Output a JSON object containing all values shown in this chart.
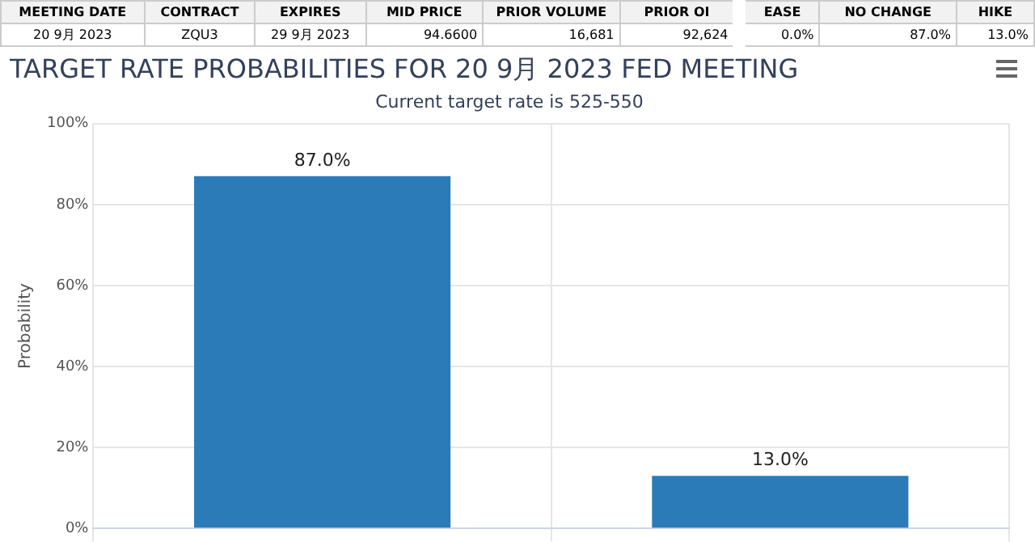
{
  "chart_data": {
    "type": "bar",
    "title": "TARGET RATE PROBABILITIES FOR 20 9月 2023 FED MEETING",
    "subtitle": "Current target rate is 525-550",
    "ylabel": "Probability",
    "annotations": [
      "MEETING DATE",
      "CONTRACT",
      "EXPIRES",
      "MID PRICE",
      "PRIOR VOLUME",
      "PRIOR OI",
      "EASE",
      "NO CHANGE",
      "HIKE",
      "20 9月 2023",
      "ZQU3",
      "29 9月 2023",
      "94.6600",
      "16,681",
      "92,624",
      "0.0%",
      "87.0%",
      "13.0%"
    ],
    "categories": [
      null,
      null
    ],
    "values": [
      87,
      13
    ],
    "value_labels": [
      "87.0%",
      "13.0%"
    ],
    "color": "#2b7bb9",
    "ylim": [
      0,
      100
    ],
    "yticks": [
      {
        "value": 0,
        "label": "0%"
      },
      {
        "value": 20,
        "label": "20%"
      },
      {
        "value": 40,
        "label": "40%"
      },
      {
        "value": 60,
        "label": "60%"
      },
      {
        "value": 80,
        "label": "80%"
      },
      {
        "value": 100,
        "label": "100%"
      }
    ],
    "grid": true,
    "legend": false
  }
}
